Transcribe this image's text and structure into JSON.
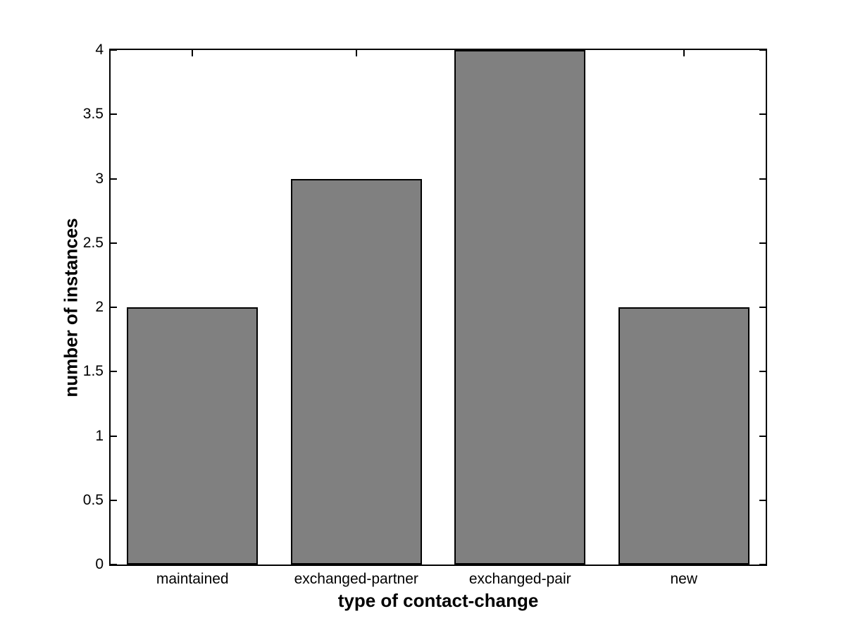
{
  "figure": {
    "background": "#ffffff",
    "axis_color": "#000000"
  },
  "chart_data": {
    "type": "bar",
    "categories": [
      "maintained",
      "exchanged-partner",
      "exchanged-pair",
      "new"
    ],
    "values": [
      2,
      3,
      4,
      2
    ],
    "title": "",
    "xlabel": "type of contact-change",
    "ylabel": "number of instances",
    "ylim": [
      0,
      4
    ],
    "yticks": [
      0,
      0.5,
      1,
      1.5,
      2,
      2.5,
      3,
      3.5,
      4
    ],
    "ytick_labels": [
      "0",
      "0.5",
      "1",
      "1.5",
      "2",
      "2.5",
      "3",
      "3.5",
      "4"
    ],
    "bar_width_fraction": 0.8,
    "bar_color": "#808080",
    "bar_edge_color": "#000000",
    "grid": false,
    "legend_position": "none",
    "box": true,
    "tick_direction": "in"
  }
}
